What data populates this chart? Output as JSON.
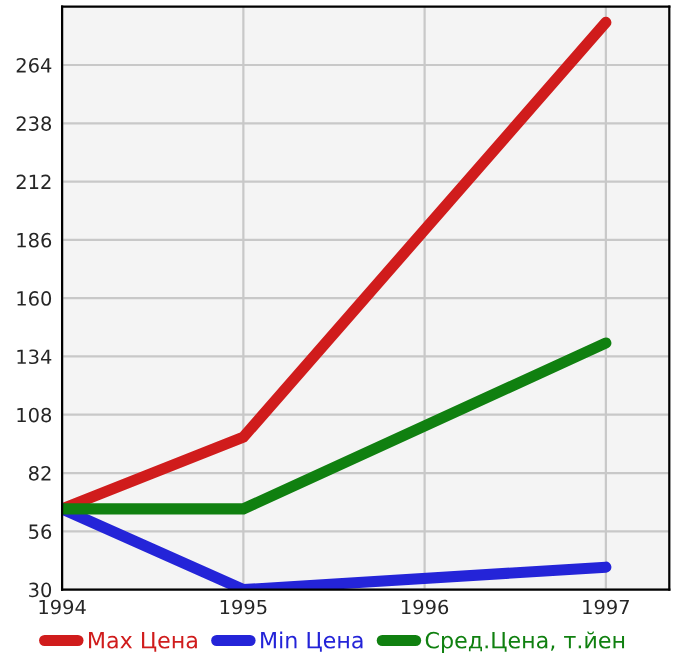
{
  "chart_data": {
    "type": "line",
    "x": [
      1994,
      1995,
      1997
    ],
    "series": [
      {
        "name": "Max Цена",
        "color": "#d01c1c",
        "values": [
          66,
          98,
          283
        ]
      },
      {
        "name": "Min Цена",
        "color": "#2424d8",
        "values": [
          66,
          30,
          40
        ]
      },
      {
        "name": "Сред.Цена, т.йен",
        "color": "#108010",
        "values": [
          66,
          66,
          140
        ]
      }
    ],
    "xlim": [
      1994,
      1997.35
    ],
    "xticks": [
      1994,
      1995,
      1996,
      1997
    ],
    "ylim": [
      30,
      290
    ],
    "yticks": [
      30,
      56,
      82,
      108,
      134,
      160,
      186,
      212,
      238,
      264
    ],
    "grid": true,
    "legend": "bottom",
    "marker": "none",
    "line_style": "solid"
  }
}
